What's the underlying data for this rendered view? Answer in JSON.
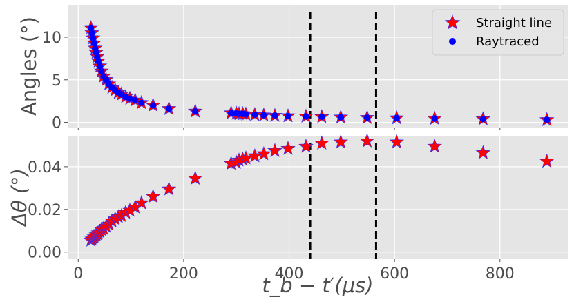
{
  "chart_data": [
    {
      "type": "scatter",
      "panel": "top",
      "ylabel": "Angles (°)",
      "xlim": [
        -20,
        930
      ],
      "ylim": [
        -0.6,
        13.8
      ],
      "yticks": [
        0,
        5,
        10
      ],
      "ytick_labels": [
        "0",
        "5",
        "10"
      ],
      "xticks": [
        0,
        200,
        400,
        600,
        800
      ],
      "grid": true,
      "vlines": [
        440,
        565
      ],
      "legend_position": "top-right",
      "series": [
        {
          "name": "Straight line",
          "marker": "star",
          "color": "#ff0000",
          "points": [
            [
              24,
              11.1
            ],
            [
              26,
              10.5
            ],
            [
              28,
              9.9
            ],
            [
              30,
              9.3
            ],
            [
              32,
              8.7
            ],
            [
              34,
              8.2
            ],
            [
              36,
              7.7
            ],
            [
              38,
              7.2
            ],
            [
              41,
              6.6
            ],
            [
              44,
              6.0
            ],
            [
              48,
              5.4
            ],
            [
              53,
              5.0
            ],
            [
              58,
              4.5
            ],
            [
              64,
              4.1
            ],
            [
              70,
              3.8
            ],
            [
              76,
              3.5
            ],
            [
              82,
              3.3
            ],
            [
              90,
              3.0
            ],
            [
              98,
              2.8
            ],
            [
              108,
              2.6
            ],
            [
              120,
              2.3
            ],
            [
              142,
              2.0
            ],
            [
              172,
              1.6
            ],
            [
              222,
              1.3
            ],
            [
              290,
              1.1
            ],
            [
              300,
              1.05
            ],
            [
              305,
              1.0
            ],
            [
              312,
              1.0
            ],
            [
              318,
              0.95
            ],
            [
              335,
              0.9
            ],
            [
              352,
              0.85
            ],
            [
              373,
              0.8
            ],
            [
              398,
              0.75
            ],
            [
              432,
              0.7
            ],
            [
              462,
              0.65
            ],
            [
              498,
              0.6
            ],
            [
              548,
              0.55
            ],
            [
              604,
              0.5
            ],
            [
              676,
              0.45
            ],
            [
              768,
              0.4
            ],
            [
              889,
              0.3
            ]
          ]
        },
        {
          "name": "Raytraced",
          "marker": "circle",
          "color": "#0000ff",
          "points": [
            [
              24,
              11.1
            ],
            [
              26,
              10.5
            ],
            [
              28,
              9.9
            ],
            [
              30,
              9.3
            ],
            [
              32,
              8.7
            ],
            [
              34,
              8.2
            ],
            [
              36,
              7.7
            ],
            [
              38,
              7.2
            ],
            [
              41,
              6.6
            ],
            [
              44,
              6.0
            ],
            [
              48,
              5.4
            ],
            [
              53,
              5.0
            ],
            [
              58,
              4.5
            ],
            [
              64,
              4.1
            ],
            [
              70,
              3.8
            ],
            [
              76,
              3.5
            ],
            [
              82,
              3.3
            ],
            [
              90,
              3.0
            ],
            [
              98,
              2.8
            ],
            [
              108,
              2.6
            ],
            [
              120,
              2.3
            ],
            [
              142,
              2.0
            ],
            [
              172,
              1.6
            ],
            [
              222,
              1.3
            ],
            [
              290,
              1.1
            ],
            [
              300,
              1.05
            ],
            [
              305,
              1.0
            ],
            [
              312,
              1.0
            ],
            [
              318,
              0.95
            ],
            [
              335,
              0.9
            ],
            [
              352,
              0.85
            ],
            [
              373,
              0.8
            ],
            [
              398,
              0.75
            ],
            [
              432,
              0.7
            ],
            [
              462,
              0.65
            ],
            [
              498,
              0.6
            ],
            [
              548,
              0.55
            ],
            [
              604,
              0.5
            ],
            [
              676,
              0.45
            ],
            [
              768,
              0.4
            ],
            [
              889,
              0.3
            ]
          ]
        }
      ]
    },
    {
      "type": "scatter",
      "panel": "bottom",
      "ylabel": "Δθ (°)",
      "xlabel": "t_b − t′(μs)",
      "xlim": [
        -20,
        930
      ],
      "ylim": [
        -0.003,
        0.0545
      ],
      "yticks": [
        0.0,
        0.02,
        0.04
      ],
      "ytick_labels": [
        "0.00",
        "0.02",
        "0.04"
      ],
      "xticks": [
        0,
        200,
        400,
        600,
        800
      ],
      "xtick_labels": [
        "0",
        "200",
        "400",
        "600",
        "800"
      ],
      "grid": true,
      "vlines": [
        440,
        565
      ],
      "series": [
        {
          "name": "Straight line",
          "marker": "star",
          "color": "#ff0000",
          "points": [
            [
              24,
              0.0055
            ],
            [
              26,
              0.006
            ],
            [
              28,
              0.0065
            ],
            [
              30,
              0.007
            ],
            [
              32,
              0.0075
            ],
            [
              34,
              0.008
            ],
            [
              36,
              0.0085
            ],
            [
              38,
              0.009
            ],
            [
              41,
              0.0095
            ],
            [
              44,
              0.0105
            ],
            [
              48,
              0.011
            ],
            [
              53,
              0.012
            ],
            [
              58,
              0.013
            ],
            [
              64,
              0.0145
            ],
            [
              70,
              0.0155
            ],
            [
              76,
              0.0165
            ],
            [
              82,
              0.017
            ],
            [
              90,
              0.0185
            ],
            [
              98,
              0.0195
            ],
            [
              108,
              0.021
            ],
            [
              120,
              0.023
            ],
            [
              142,
              0.026
            ],
            [
              172,
              0.0295
            ],
            [
              222,
              0.0345
            ],
            [
              290,
              0.0415
            ],
            [
              300,
              0.042
            ],
            [
              305,
              0.043
            ],
            [
              312,
              0.0435
            ],
            [
              318,
              0.044
            ],
            [
              335,
              0.045
            ],
            [
              352,
              0.046
            ],
            [
              373,
              0.0475
            ],
            [
              398,
              0.0485
            ],
            [
              432,
              0.0495
            ],
            [
              462,
              0.051
            ],
            [
              498,
              0.0515
            ],
            [
              548,
              0.052
            ],
            [
              604,
              0.0515
            ],
            [
              676,
              0.0495
            ],
            [
              768,
              0.0465
            ],
            [
              889,
              0.0425
            ]
          ]
        }
      ]
    }
  ],
  "legend": {
    "items": [
      {
        "label": "Straight line",
        "marker": "star",
        "color": "#ff0000"
      },
      {
        "label": "Raytraced",
        "marker": "circle",
        "color": "#0000ff"
      }
    ]
  },
  "colors": {
    "axes_bg": "#e5e5e5",
    "grid": "#ffffff",
    "tick_text": "#4d4d4d",
    "vline": "#000000",
    "star_fill": "#ff0000",
    "star_edge": "#3030ff",
    "dot": "#0000ff"
  }
}
